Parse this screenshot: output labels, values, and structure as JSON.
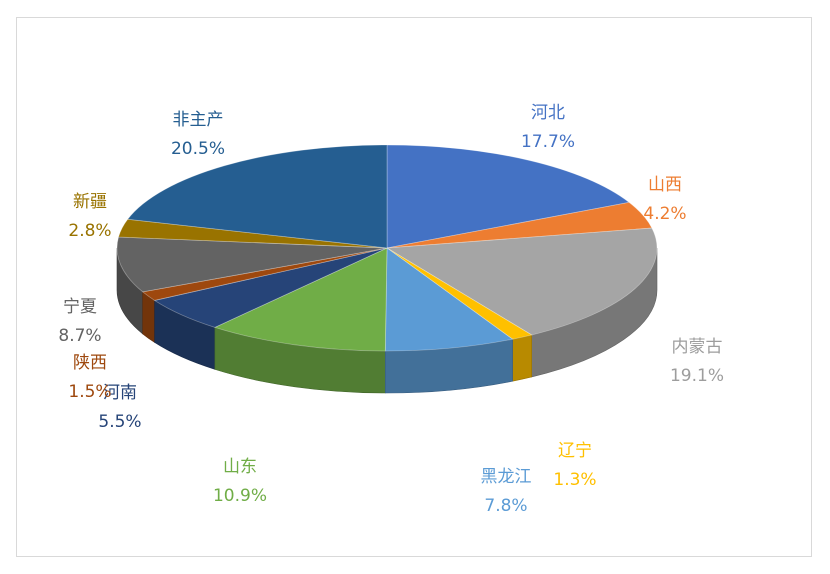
{
  "chart_data": {
    "type": "pie",
    "style": "3d",
    "title": "",
    "slices": [
      {
        "label": "河北",
        "value": 17.7,
        "value_text": "17.7%",
        "color": "#4472C4"
      },
      {
        "label": "山西",
        "value": 4.2,
        "value_text": "4.2%",
        "color": "#ED7D31"
      },
      {
        "label": "内蒙古",
        "value": 19.1,
        "value_text": "19.1%",
        "color": "#A5A5A5"
      },
      {
        "label": "辽宁",
        "value": 1.3,
        "value_text": "1.3%",
        "color": "#FFC000"
      },
      {
        "label": "黑龙江",
        "value": 7.8,
        "value_text": "7.8%",
        "color": "#5B9BD5"
      },
      {
        "label": "山东",
        "value": 10.9,
        "value_text": "10.9%",
        "color": "#70AD47"
      },
      {
        "label": "河南",
        "value": 5.5,
        "value_text": "5.5%",
        "color": "#264478"
      },
      {
        "label": "陕西",
        "value": 1.5,
        "value_text": "1.5%",
        "color": "#9E480E"
      },
      {
        "label": "宁夏",
        "value": 8.7,
        "value_text": "8.7%",
        "color": "#636363"
      },
      {
        "label": "新疆",
        "value": 2.8,
        "value_text": "2.8%",
        "color": "#997300"
      },
      {
        "label": "非主产",
        "value": 20.5,
        "value_text": "20.5%",
        "color": "#255E91"
      }
    ]
  }
}
